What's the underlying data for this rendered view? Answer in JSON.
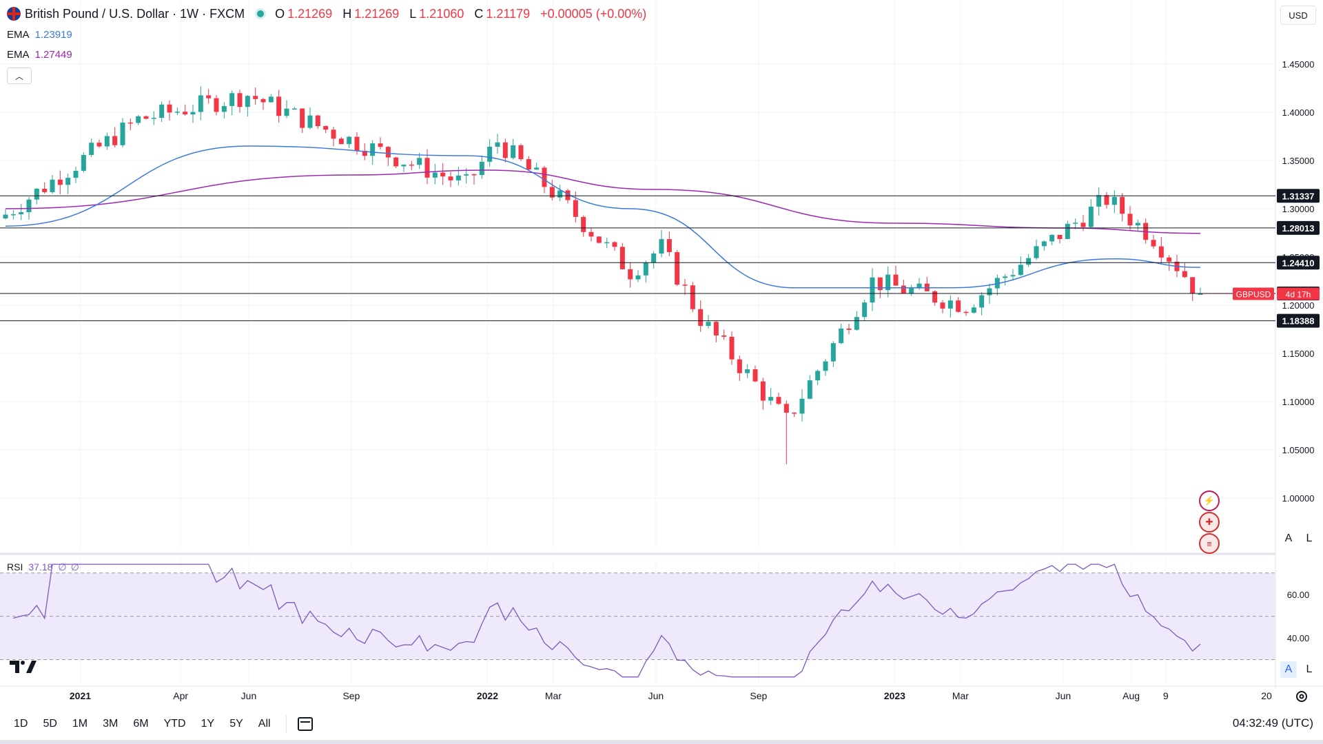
{
  "header": {
    "symbol_title": "British Pound / U.S. Dollar · 1W · FXCM",
    "ohlc": [
      {
        "k": "O",
        "v": "1.21269"
      },
      {
        "k": "H",
        "v": "1.21269"
      },
      {
        "k": "L",
        "v": "1.21060"
      },
      {
        "k": "C",
        "v": "1.21179"
      }
    ],
    "change": "+0.00005 (+0.00%)"
  },
  "indicators": {
    "ema1": {
      "name": "EMA",
      "value": "1.23919"
    },
    "ema2": {
      "name": "EMA",
      "value": "1.27449"
    },
    "rsi": {
      "name": "RSI",
      "value": "37.18",
      "extra1": "∅",
      "extra2": "∅"
    }
  },
  "currency_button": "USD",
  "auto_label": "A",
  "log_label": "L",
  "timeframes": [
    "1D",
    "5D",
    "1M",
    "3M",
    "6M",
    "YTD",
    "1Y",
    "5Y",
    "All"
  ],
  "clock": "04:32:49 (UTC)",
  "colors": {
    "up": "#26a69a",
    "down": "#f23645",
    "ema1": "#3a78e0",
    "ema2": "#9c27b0",
    "rsi": "#7e57c2",
    "rsi_band": "#efeafb"
  },
  "chart_data": {
    "type": "candlestick",
    "title": "British Pound / U.S. Dollar · 1W · FXCM",
    "ylim": [
      1.0,
      1.47
    ],
    "y_ticks": [
      "1.45000",
      "1.40000",
      "1.35000",
      "1.30000",
      "1.25000",
      "1.20000",
      "1.15000",
      "1.10000",
      "1.05000",
      "1.00000"
    ],
    "y_tick_values": [
      1.45,
      1.4,
      1.35,
      1.3,
      1.25,
      1.2,
      1.15,
      1.1,
      1.05,
      1.0
    ],
    "x_ticks": [
      "2021",
      "Apr",
      "Jun",
      "Sep",
      "2022",
      "Mar",
      "Jun",
      "Sep",
      "2023",
      "Mar",
      "Jun",
      "Aug",
      "9",
      "20"
    ],
    "x_tick_dates": [
      "2021-01-01",
      "2021-04-01",
      "2021-06-01",
      "2021-09-01",
      "2022-01-01",
      "2022-03-01",
      "2022-06-01",
      "2022-09-01",
      "2023-01-01",
      "2023-03-01",
      "2023-06-01",
      "2023-08-01",
      "2023-09-01",
      "2024-01-01"
    ],
    "horizontal_levels": [
      {
        "value": 1.31337,
        "label": "1.31337"
      },
      {
        "value": 1.28013,
        "label": "1.28013"
      },
      {
        "value": 1.2441,
        "label": "1.24410"
      },
      {
        "value": 1.21216,
        "label": "1.21216"
      },
      {
        "value": 1.18388,
        "label": "1.18388"
      }
    ],
    "last_price": {
      "value": 1.21179,
      "symbol": "GBPUSD",
      "countdown": "4d 17h"
    },
    "key_points": [
      {
        "date": "2020-10-26",
        "close": 1.2941
      },
      {
        "date": "2021-02-22",
        "close": 1.3925
      },
      {
        "date": "2021-05-31",
        "close": 1.4183
      },
      {
        "date": "2021-08-23",
        "close": 1.375
      },
      {
        "date": "2021-12-13",
        "close": 1.325
      },
      {
        "date": "2022-01-10",
        "close": 1.37
      },
      {
        "date": "2022-03-07",
        "close": 1.31
      },
      {
        "date": "2022-05-09",
        "close": 1.235
      },
      {
        "date": "2022-06-06",
        "close": 1.26
      },
      {
        "date": "2022-07-11",
        "close": 1.186
      },
      {
        "date": "2022-09-26",
        "close": 1.08
      },
      {
        "date": "2022-12-12",
        "close": 1.225
      },
      {
        "date": "2023-03-06",
        "close": 1.2
      },
      {
        "date": "2023-07-10",
        "close": 1.31
      },
      {
        "date": "2023-08-21",
        "close": 1.27
      },
      {
        "date": "2023-10-02",
        "close": 1.212
      }
    ],
    "ema_fast_points": [
      {
        "date": "2020-10-26",
        "value": 1.282
      },
      {
        "date": "2021-06-01",
        "value": 1.365
      },
      {
        "date": "2021-12-13",
        "value": 1.355
      },
      {
        "date": "2022-05-09",
        "value": 1.3
      },
      {
        "date": "2022-10-03",
        "value": 1.218
      },
      {
        "date": "2023-02-20",
        "value": 1.218
      },
      {
        "date": "2023-07-17",
        "value": 1.248
      },
      {
        "date": "2023-10-02",
        "value": 1.23919
      }
    ],
    "ema_slow_points": [
      {
        "date": "2020-10-26",
        "value": 1.3
      },
      {
        "date": "2021-09-01",
        "value": 1.335
      },
      {
        "date": "2022-01-01",
        "value": 1.34
      },
      {
        "date": "2022-06-01",
        "value": 1.32
      },
      {
        "date": "2023-01-01",
        "value": 1.285
      },
      {
        "date": "2023-06-01",
        "value": 1.28
      },
      {
        "date": "2023-10-02",
        "value": 1.27449
      }
    ],
    "rsi": {
      "ylim": [
        20,
        75
      ],
      "ticks": [
        "60.00",
        "40.00"
      ],
      "tick_values": [
        60,
        40
      ],
      "band": [
        30,
        70
      ],
      "mid": 50,
      "last": 37.18
    }
  }
}
